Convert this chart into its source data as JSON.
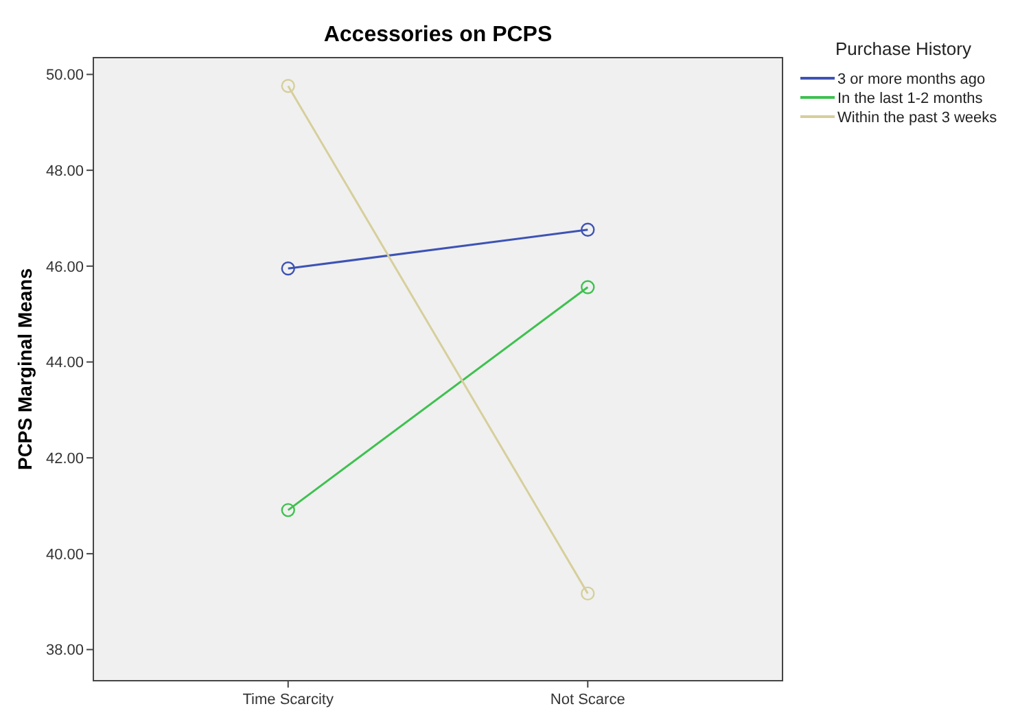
{
  "chart_data": {
    "type": "line",
    "title": "Accessories on PCPS",
    "ylabel": "PCPS Marginal Means",
    "legend_title": "Purchase History",
    "categories": [
      "Time Scarcity",
      "Not Scarce"
    ],
    "series": [
      {
        "name": "3 or more months ago",
        "color": "#3e53b5",
        "values": [
          45.95,
          46.76
        ]
      },
      {
        "name": "In the last 1-2 months",
        "color": "#3ec14f",
        "values": [
          40.91,
          45.56
        ]
      },
      {
        "name": "Within the past 3 weeks",
        "color": "#d6cf9b",
        "values": [
          49.76,
          39.17
        ]
      }
    ],
    "ylim": [
      37.35,
      50.35
    ],
    "yticks": [
      {
        "value": 38,
        "label": "38.00"
      },
      {
        "value": 40,
        "label": "40.00"
      },
      {
        "value": 42,
        "label": "42.00"
      },
      {
        "value": 44,
        "label": "44.00"
      },
      {
        "value": 46,
        "label": "46.00"
      },
      {
        "value": 48,
        "label": "48.00"
      },
      {
        "value": 50,
        "label": "50.00"
      }
    ],
    "marker": "circle",
    "legend": "right",
    "grid": false
  }
}
